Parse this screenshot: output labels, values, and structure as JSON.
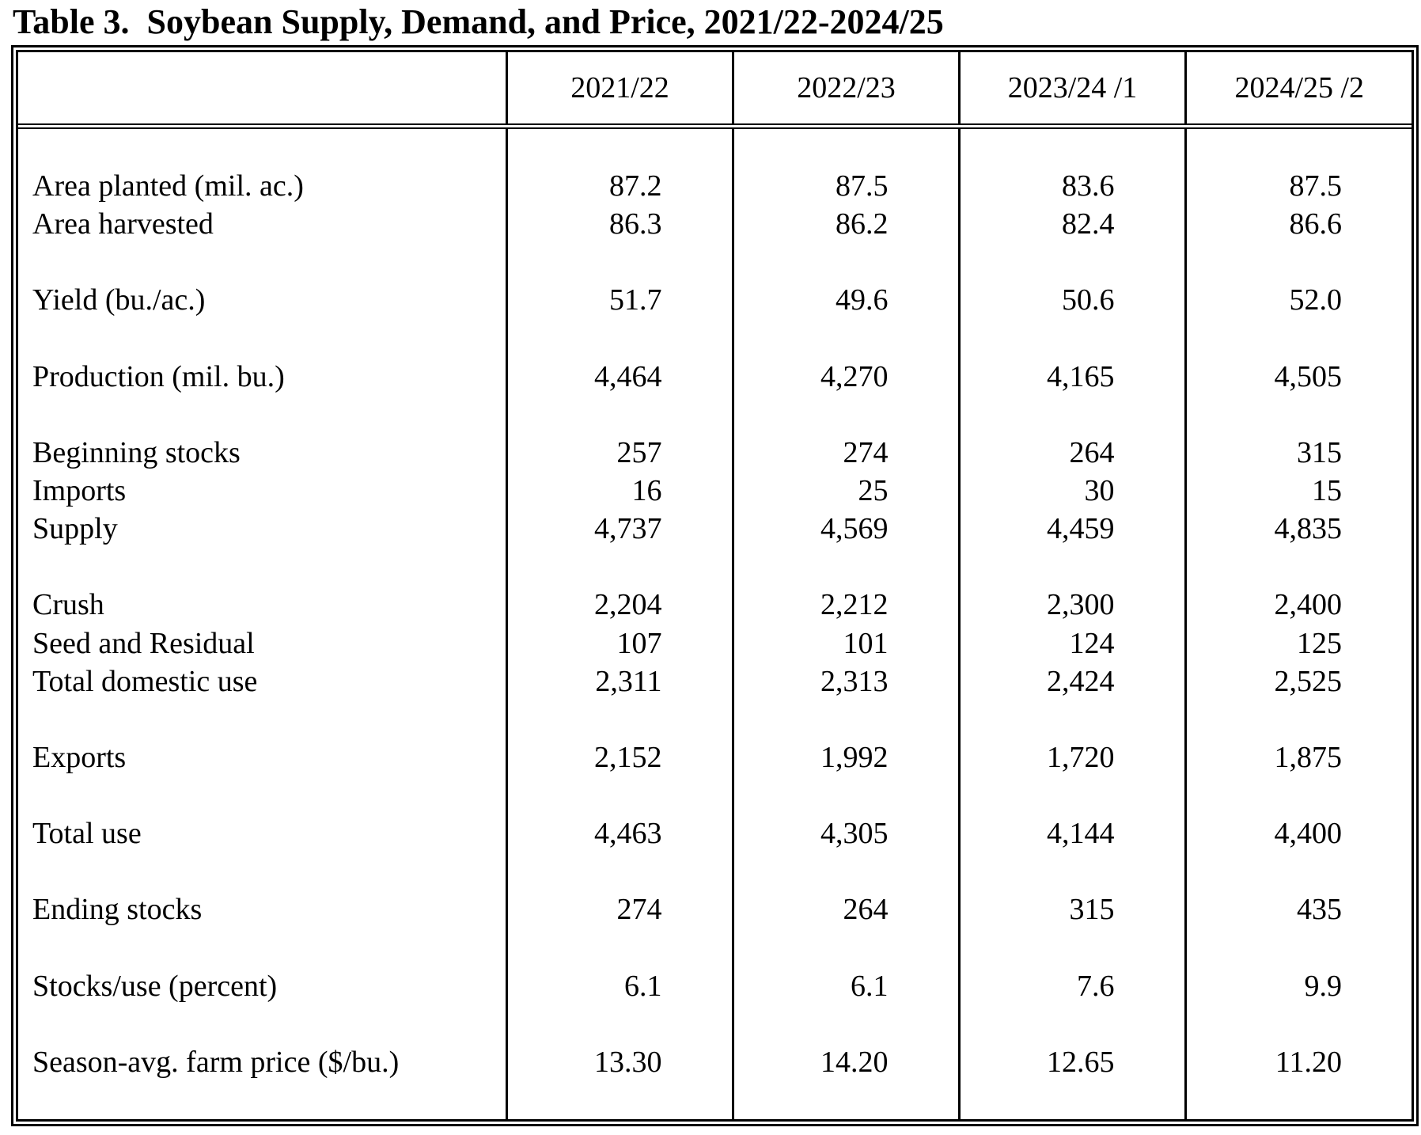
{
  "title": "Table 3.  Soybean Supply, Demand, and Price, 2021/22-2024/25",
  "colors": {
    "text": "#000000",
    "background": "#ffffff",
    "border": "#000000"
  },
  "table": {
    "columns": [
      "2021/22",
      "2022/23",
      "2023/24 /1",
      "2024/25 /2"
    ],
    "rows": [
      {
        "label": "Area planted (mil. ac.)",
        "values": [
          "87.2",
          "87.5",
          "83.6",
          "87.5"
        ]
      },
      {
        "label": "Area harvested",
        "values": [
          "86.3",
          "86.2",
          "82.4",
          "86.6"
        ]
      },
      {
        "label": "Yield (bu./ac.)",
        "values": [
          "51.7",
          "49.6",
          "50.6",
          "52.0"
        ]
      },
      {
        "label": "Production (mil. bu.)",
        "values": [
          "4,464",
          "4,270",
          "4,165",
          "4,505"
        ]
      },
      {
        "label": "Beginning stocks",
        "values": [
          "257",
          "274",
          "264",
          "315"
        ]
      },
      {
        "label": "Imports",
        "values": [
          "16",
          "25",
          "30",
          "15"
        ]
      },
      {
        "label": "Supply",
        "values": [
          "4,737",
          "4,569",
          "4,459",
          "4,835"
        ]
      },
      {
        "label": "Crush",
        "values": [
          "2,204",
          "2,212",
          "2,300",
          "2,400"
        ]
      },
      {
        "label": "Seed and Residual",
        "values": [
          "107",
          "101",
          "124",
          "125"
        ]
      },
      {
        "label": "Total domestic use",
        "values": [
          "2,311",
          "2,313",
          "2,424",
          "2,525"
        ]
      },
      {
        "label": "Exports",
        "values": [
          "2,152",
          "1,992",
          "1,720",
          "1,875"
        ]
      },
      {
        "label": "Total use",
        "values": [
          "4,463",
          "4,305",
          "4,144",
          "4,400"
        ]
      },
      {
        "label": "Ending stocks",
        "values": [
          "274",
          "264",
          "315",
          "435"
        ]
      },
      {
        "label": "Stocks/use (percent)",
        "values": [
          "6.1",
          "6.1",
          "7.6",
          "9.9"
        ]
      },
      {
        "label": "Season-avg. farm price ($/bu.)",
        "values": [
          "13.30",
          "14.20",
          "12.65",
          "11.20"
        ]
      }
    ]
  }
}
